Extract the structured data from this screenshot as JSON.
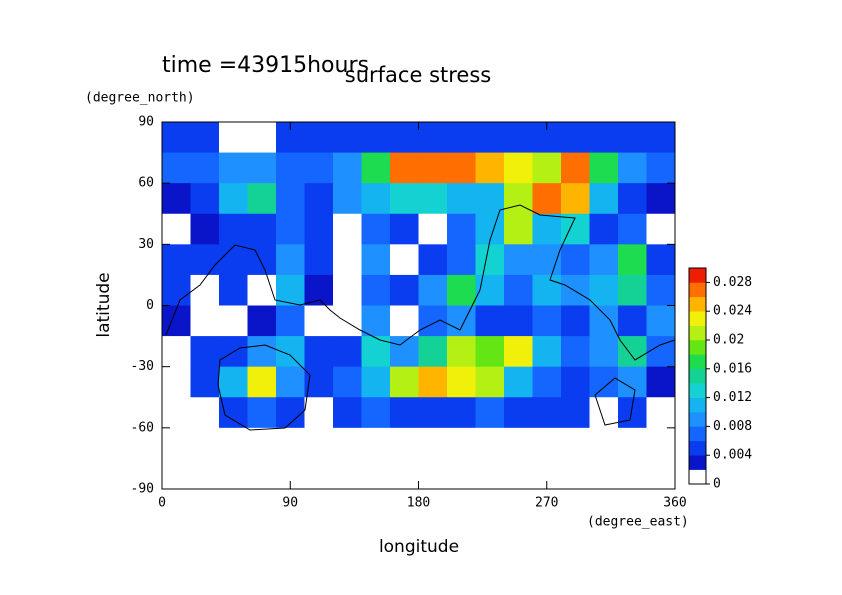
{
  "chart_data": {
    "type": "contour",
    "title": "surface stress",
    "subtitle": "time =43915hours",
    "x_label": "longitude",
    "x_unit": "(degree_east)",
    "y_label": "latitude",
    "y_unit": "(degree_north)",
    "x": [
      10,
      30,
      50,
      70,
      90,
      110,
      130,
      150,
      170,
      190,
      210,
      230,
      250,
      270,
      290,
      310,
      330,
      350
    ],
    "y": [
      82.5,
      67.5,
      52.5,
      37.5,
      22.5,
      7.5,
      -7.5,
      -22.5,
      -37.5,
      -52.5,
      -67.5,
      -82.5
    ],
    "z": [
      [
        0.005,
        0.005,
        0.001,
        0,
        0.005,
        0.004,
        0.004,
        0.004,
        0.005,
        0.004,
        0.004,
        0.004,
        0.004,
        0.005,
        0.004,
        0.004,
        0.004,
        0.004
      ],
      [
        0.006,
        0.006,
        0.008,
        0.009,
        0.006,
        0.006,
        0.008,
        0.016,
        0.026,
        0.026,
        0.026,
        0.024,
        0.022,
        0.02,
        0.026,
        0.016,
        0.008,
        0.006
      ],
      [
        0.003,
        0.005,
        0.01,
        0.014,
        0.006,
        0.005,
        0.008,
        0.01,
        0.012,
        0.012,
        0.01,
        0.01,
        0.02,
        0.026,
        0.024,
        0.01,
        0.005,
        0.003
      ],
      [
        0,
        0.003,
        0.005,
        0.005,
        0.006,
        0.004,
        0,
        0.006,
        0.004,
        0,
        0.006,
        0.01,
        0.02,
        0.01,
        0.012,
        0.004,
        0.006,
        0
      ],
      [
        0.005,
        0.004,
        0.004,
        0.004,
        0.008,
        0.005,
        0,
        0.008,
        0,
        0.004,
        0.006,
        0.012,
        0.008,
        0.008,
        0.006,
        0.008,
        0.016,
        0.005
      ],
      [
        0.004,
        0,
        0.005,
        0,
        0.01,
        0.003,
        0,
        0.006,
        0.004,
        0.008,
        0.016,
        0.01,
        0.006,
        0.01,
        0.008,
        0.01,
        0.014,
        0.006
      ],
      [
        0.003,
        0,
        0,
        0.003,
        0.006,
        0,
        0,
        0.008,
        0,
        0.006,
        0.008,
        0.004,
        0.005,
        0.006,
        0.004,
        0.008,
        0.005,
        0.008
      ],
      [
        0,
        0.004,
        0.004,
        0.008,
        0.01,
        0.004,
        0.004,
        0.012,
        0.008,
        0.014,
        0.02,
        0.018,
        0.022,
        0.01,
        0.006,
        0.008,
        0.014,
        0.006
      ],
      [
        0,
        0.004,
        0.01,
        0.022,
        0.008,
        0.004,
        0.006,
        0.01,
        0.02,
        0.024,
        0.022,
        0.02,
        0.01,
        0.006,
        0.004,
        0.006,
        0.008,
        0.003
      ],
      [
        0,
        0,
        0.004,
        0.006,
        0.004,
        0,
        0.005,
        0.006,
        0.004,
        0.005,
        0.005,
        0.006,
        0.004,
        0.004,
        0.005,
        0,
        0.004,
        0
      ],
      [
        0,
        0,
        0,
        0,
        0,
        0,
        0,
        0,
        0,
        0,
        0,
        0,
        0,
        0,
        0,
        0,
        0,
        0
      ],
      [
        0,
        0,
        0,
        0,
        0,
        0,
        0,
        0,
        0,
        0,
        0,
        0,
        0,
        0,
        0,
        0,
        0,
        0
      ]
    ],
    "xlim": [
      0,
      360
    ],
    "xticks": [
      0,
      90,
      180,
      270,
      360
    ],
    "ylim": [
      -90,
      90
    ],
    "yticks": [
      -90,
      -60,
      -30,
      0,
      30,
      60,
      90
    ],
    "clim": [
      0,
      0.03
    ],
    "cticks": [
      0,
      0.004,
      0.008,
      0.012,
      0.016,
      0.02,
      0.024,
      0.028
    ],
    "colors": [
      "#ffffff",
      "#0a14c8",
      "#0a3cf0",
      "#1466ff",
      "#1e90ff",
      "#14b4f0",
      "#14d2d2",
      "#14d296",
      "#1edc50",
      "#64e614",
      "#b4f014",
      "#f0f00a",
      "#ffb400",
      "#ff6e00",
      "#f01e00"
    ]
  }
}
